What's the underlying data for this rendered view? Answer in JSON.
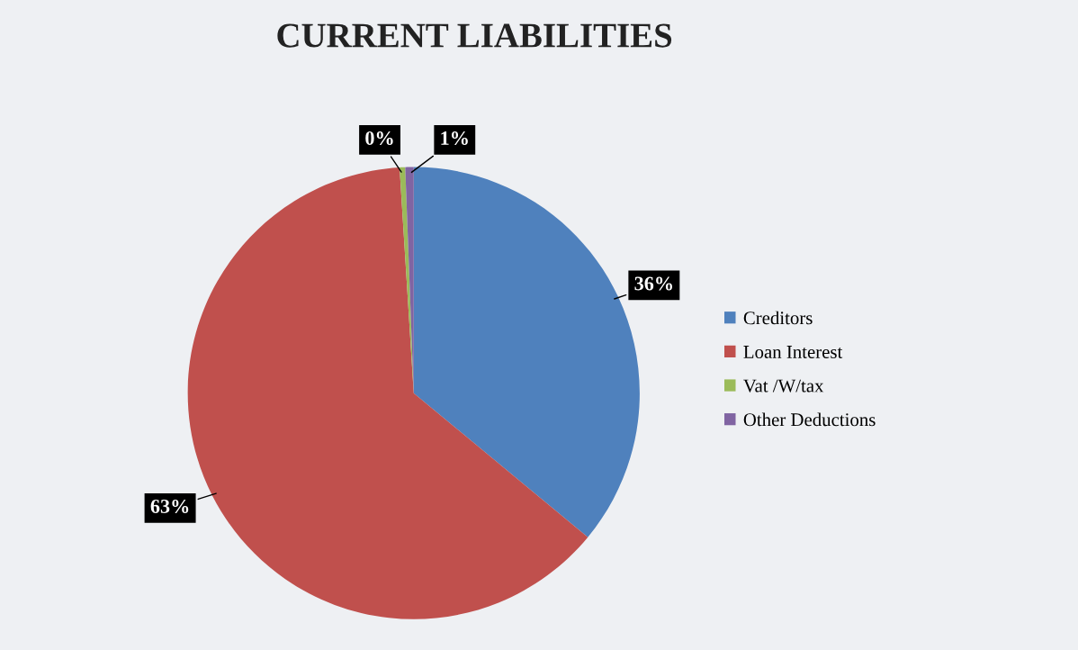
{
  "chart_data": {
    "type": "pie",
    "title": "CURRENT LIABILITIES",
    "categories": [
      "Creditors",
      "Loan Interest",
      "Vat /W/tax",
      "Other Deductions"
    ],
    "values": [
      36,
      63,
      0.4,
      0.6
    ],
    "value_labels": [
      "36%",
      "63%",
      "0%",
      "1%"
    ],
    "colors": [
      "#4f81bd",
      "#c0504d",
      "#9bbb59",
      "#8064a2"
    ],
    "legend": "right"
  }
}
